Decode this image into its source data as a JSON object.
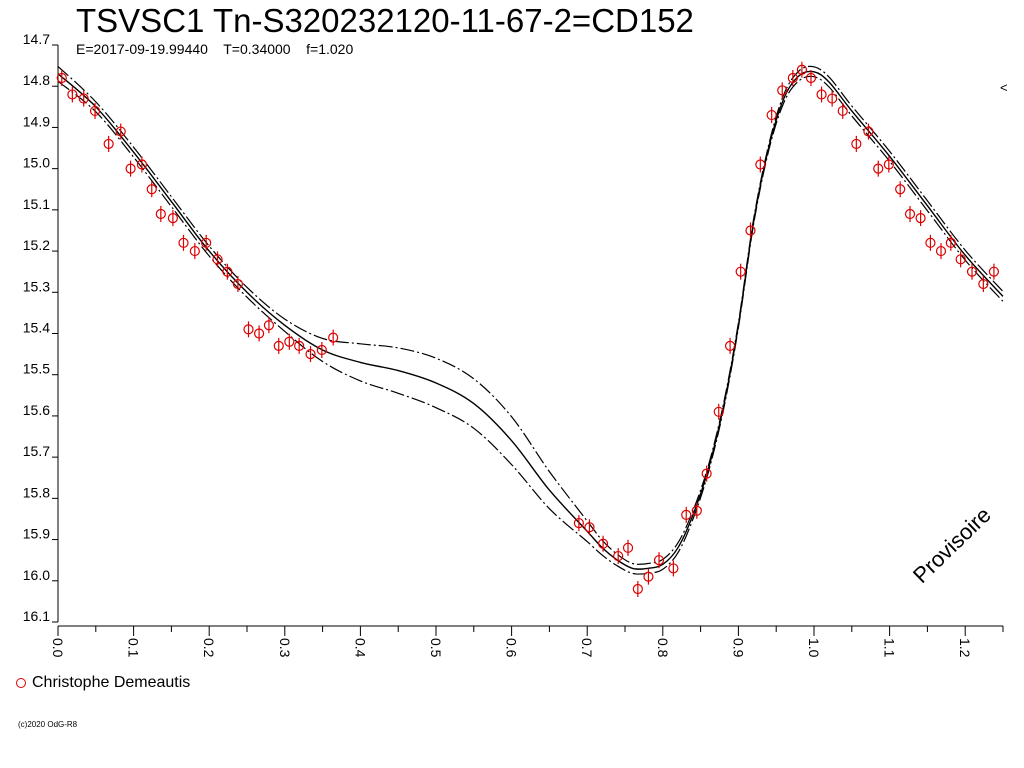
{
  "header": {
    "title": "TSVSC1 Tn-S320232120-11-67-2=CD152",
    "subtitle": "E=2017-09-19.99440    T=0.34000    f=1.020"
  },
  "legend": {
    "observer": "Christophe Demeautis"
  },
  "watermark": "Provisoire",
  "copyright": "(c)2020 OdG-R8",
  "edge_marker": "<",
  "colors": {
    "points": "#dd0000",
    "curves": "#000000",
    "axes": "#000000"
  },
  "chart_data": {
    "type": "scatter",
    "title": "TSVSC1 Tn-S320232120-11-67-2=CD152",
    "xlabel": "",
    "ylabel": "",
    "xlim": [
      0.0,
      1.25
    ],
    "ylim": [
      14.7,
      16.1
    ],
    "y_inverted": true,
    "grid": false,
    "x_ticks": [
      "0.0",
      "0.1",
      "0.2",
      "0.3",
      "0.4",
      "0.5",
      "0.6",
      "0.7",
      "0.8",
      "0.9",
      "1.0",
      "1.1",
      "1.2"
    ],
    "y_ticks": [
      "14.7",
      "14.8",
      "14.9",
      "15.0",
      "15.1",
      "15.2",
      "15.3",
      "15.4",
      "15.5",
      "15.6",
      "15.7",
      "15.8",
      "15.9",
      "16.0",
      "16.1"
    ],
    "series": [
      {
        "name": "Christophe Demeautis",
        "marker": "circle-with-errorbar",
        "x": [
          0.005,
          0.019,
          0.034,
          0.049,
          0.067,
          0.083,
          0.096,
          0.111,
          0.124,
          0.136,
          0.152,
          0.166,
          0.181,
          0.196,
          0.211,
          0.224,
          0.238,
          0.252,
          0.266,
          0.279,
          0.292,
          0.306,
          0.319,
          0.334,
          0.349,
          0.364,
          0.689,
          0.703,
          0.721,
          0.741,
          0.754,
          0.767,
          0.781,
          0.795,
          0.814,
          0.831,
          0.845,
          0.858,
          0.874,
          0.889,
          0.903,
          0.916,
          0.929,
          0.944,
          0.958,
          0.972,
          0.984,
          0.996,
          1.01,
          1.024,
          1.038,
          1.056,
          1.072,
          1.085,
          1.099,
          1.114,
          1.127,
          1.141,
          1.154,
          1.168,
          1.181,
          1.194,
          1.209,
          1.224,
          1.238
        ],
        "y": [
          14.78,
          14.82,
          14.83,
          14.86,
          14.94,
          14.91,
          15.0,
          14.99,
          15.05,
          15.11,
          15.12,
          15.18,
          15.2,
          15.18,
          15.22,
          15.25,
          15.28,
          15.39,
          15.4,
          15.38,
          15.43,
          15.42,
          15.43,
          15.45,
          15.44,
          15.41,
          15.86,
          15.87,
          15.91,
          15.94,
          15.92,
          16.02,
          15.99,
          15.95,
          15.97,
          15.84,
          15.83,
          15.74,
          15.59,
          15.43,
          15.25,
          15.15,
          14.99,
          14.87,
          14.81,
          14.78,
          14.76,
          14.78,
          14.82,
          14.83,
          14.86,
          14.94,
          14.91,
          15.0,
          14.99,
          15.05,
          15.11,
          15.12,
          15.18,
          15.2,
          15.18,
          15.22,
          15.25,
          15.28,
          15.25
        ]
      }
    ],
    "model_curve": {
      "x": [
        0.0,
        0.05,
        0.1,
        0.15,
        0.2,
        0.25,
        0.3,
        0.35,
        0.4,
        0.45,
        0.5,
        0.55,
        0.6,
        0.65,
        0.7,
        0.72,
        0.74,
        0.76,
        0.78,
        0.8,
        0.82,
        0.84,
        0.86,
        0.88,
        0.9,
        0.92,
        0.94,
        0.96,
        0.98,
        1.0,
        1.02,
        1.05,
        1.1,
        1.15,
        1.2,
        1.25
      ],
      "y": [
        14.77,
        14.85,
        14.96,
        15.08,
        15.2,
        15.3,
        15.38,
        15.44,
        15.47,
        15.49,
        15.52,
        15.57,
        15.66,
        15.78,
        15.88,
        15.92,
        15.95,
        15.97,
        15.97,
        15.96,
        15.92,
        15.84,
        15.73,
        15.58,
        15.38,
        15.13,
        14.95,
        14.83,
        14.775,
        14.765,
        14.79,
        14.86,
        14.97,
        15.09,
        15.21,
        15.31
      ],
      "envelope_offsets": [
        0.018,
        0.012,
        0.012,
        0.012,
        0.012,
        0.012,
        0.015,
        0.028,
        0.045,
        0.055,
        0.06,
        0.06,
        0.058,
        0.045,
        0.025,
        0.018,
        0.014,
        0.012,
        0.012,
        0.012,
        0.012,
        0.01,
        0.008,
        0.007,
        0.006,
        0.006,
        0.007,
        0.01,
        0.012,
        0.012,
        0.012,
        0.012,
        0.012,
        0.012,
        0.012,
        0.012
      ]
    }
  }
}
